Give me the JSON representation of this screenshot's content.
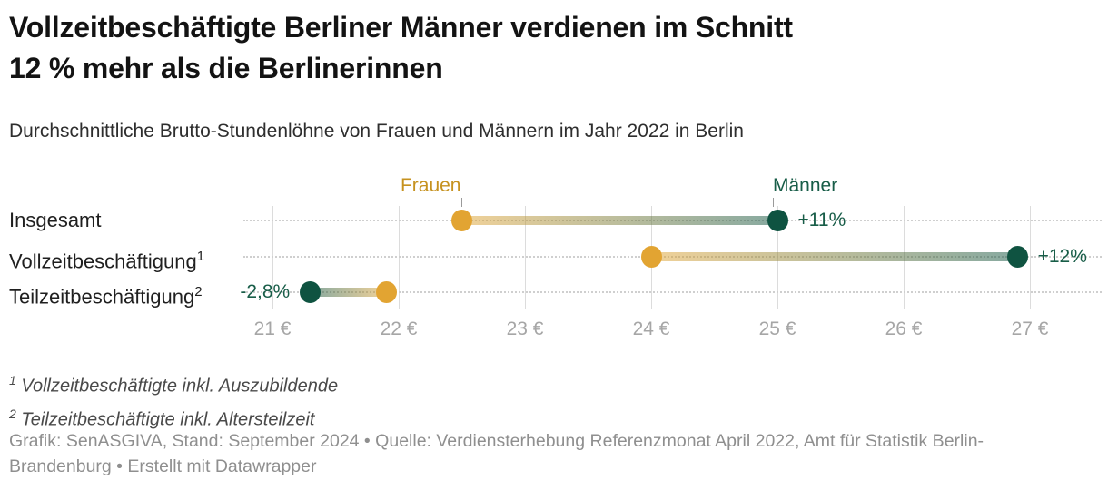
{
  "header": {
    "title_lines": [
      "Vollzeitbeschäftigte Berliner Männer verdienen im Schnitt",
      "12 % mehr als die Berlinerinnen"
    ],
    "subtitle": "Durchschnittliche Brutto-Stundenlöhne von Frauen und Männern im Jahr 2022 in Berlin"
  },
  "chart_data": {
    "type": "dumbbell",
    "title": "Vollzeitbeschäftigte Berliner Männer verdienen im Schnitt 12 % mehr als die Berlinerinnen",
    "subtitle": "Durchschnittliche Brutto-Stundenlöhne von Frauen und Männern im Jahr 2022 in Berlin",
    "unit": "€",
    "xlim": [
      21,
      27
    ],
    "x_ticks": [
      {
        "value": 21,
        "label": "21 €"
      },
      {
        "value": 22,
        "label": "22 €"
      },
      {
        "value": 23,
        "label": "23 €"
      },
      {
        "value": 24,
        "label": "24 €"
      },
      {
        "value": 25,
        "label": "25 €"
      },
      {
        "value": 26,
        "label": "26 €"
      },
      {
        "value": 27,
        "label": "27 €"
      }
    ],
    "series_labels": {
      "frauen": "Frauen",
      "maenner": "Männer"
    },
    "rows": [
      {
        "label": "Insgesamt",
        "sup": "",
        "frauen": 22.5,
        "maenner": 25.0,
        "diff": "+11%",
        "diff_side": "right"
      },
      {
        "label": "Vollzeitbeschäftigung",
        "sup": "1",
        "frauen": 24.0,
        "maenner": 26.9,
        "diff": "+12%",
        "diff_side": "right"
      },
      {
        "label": "Teilzeitbeschäftigung",
        "sup": "2",
        "frauen": 21.9,
        "maenner": 21.3,
        "diff": "-2,8%",
        "diff_side": "left"
      }
    ],
    "colors": {
      "frauen_marker": "#E2A432",
      "frauen_text": "#C6921F",
      "maenner_marker": "#0F5341",
      "maenner_text": "#185D48",
      "grid": "#DCDCDC",
      "leader": "#CFCFCF",
      "axis_text": "#A6A6A6"
    },
    "legend_position": "top-inline",
    "grid": true
  },
  "footnotes": [
    {
      "sup": "1",
      "text": "Vollzeitbeschäftigte inkl. Auszubildende"
    },
    {
      "sup": "2",
      "text": "Teilzeitbeschäftigte inkl. Altersteilzeit"
    }
  ],
  "footer": {
    "credit": "Grafik: SenASGIVA, Stand: September 2024 • Quelle: Verdiensterhebung Referenzmonat April 2022, Amt für Statistik Berlin-Brandenburg • Erstellt mit Datawrapper"
  }
}
